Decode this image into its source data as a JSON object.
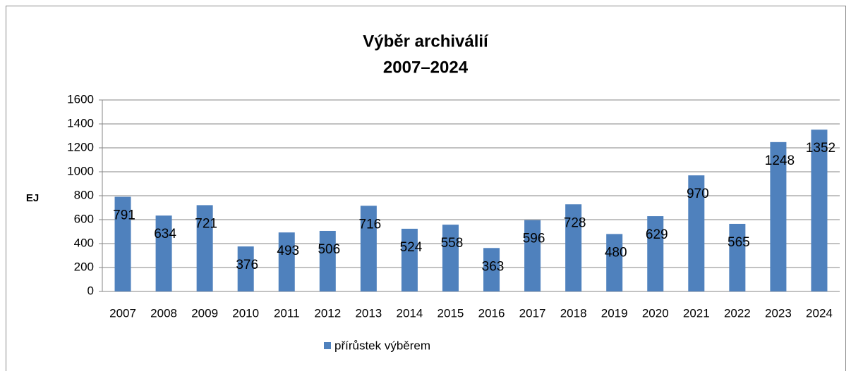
{
  "chart_data": {
    "type": "bar",
    "title": "Výběr archiválií",
    "subtitle": "2007–2024",
    "y_label": "EJ",
    "categories": [
      "2007",
      "2008",
      "2009",
      "2010",
      "2011",
      "2012",
      "2013",
      "2014",
      "2015",
      "2016",
      "2017",
      "2018",
      "2019",
      "2020",
      "2021",
      "2022",
      "2023",
      "2024"
    ],
    "series": [
      {
        "name": "přírůstek výběrem",
        "color": "#4f81bd",
        "values": [
          791,
          634,
          721,
          376,
          493,
          506,
          716,
          524,
          558,
          363,
          596,
          728,
          480,
          629,
          970,
          565,
          1248,
          1352
        ]
      }
    ],
    "ylim": [
      0,
      1600
    ],
    "yticks": [
      0,
      200,
      400,
      600,
      800,
      1000,
      1200,
      1400,
      1600
    ],
    "grid": true,
    "legend": "bottom"
  }
}
